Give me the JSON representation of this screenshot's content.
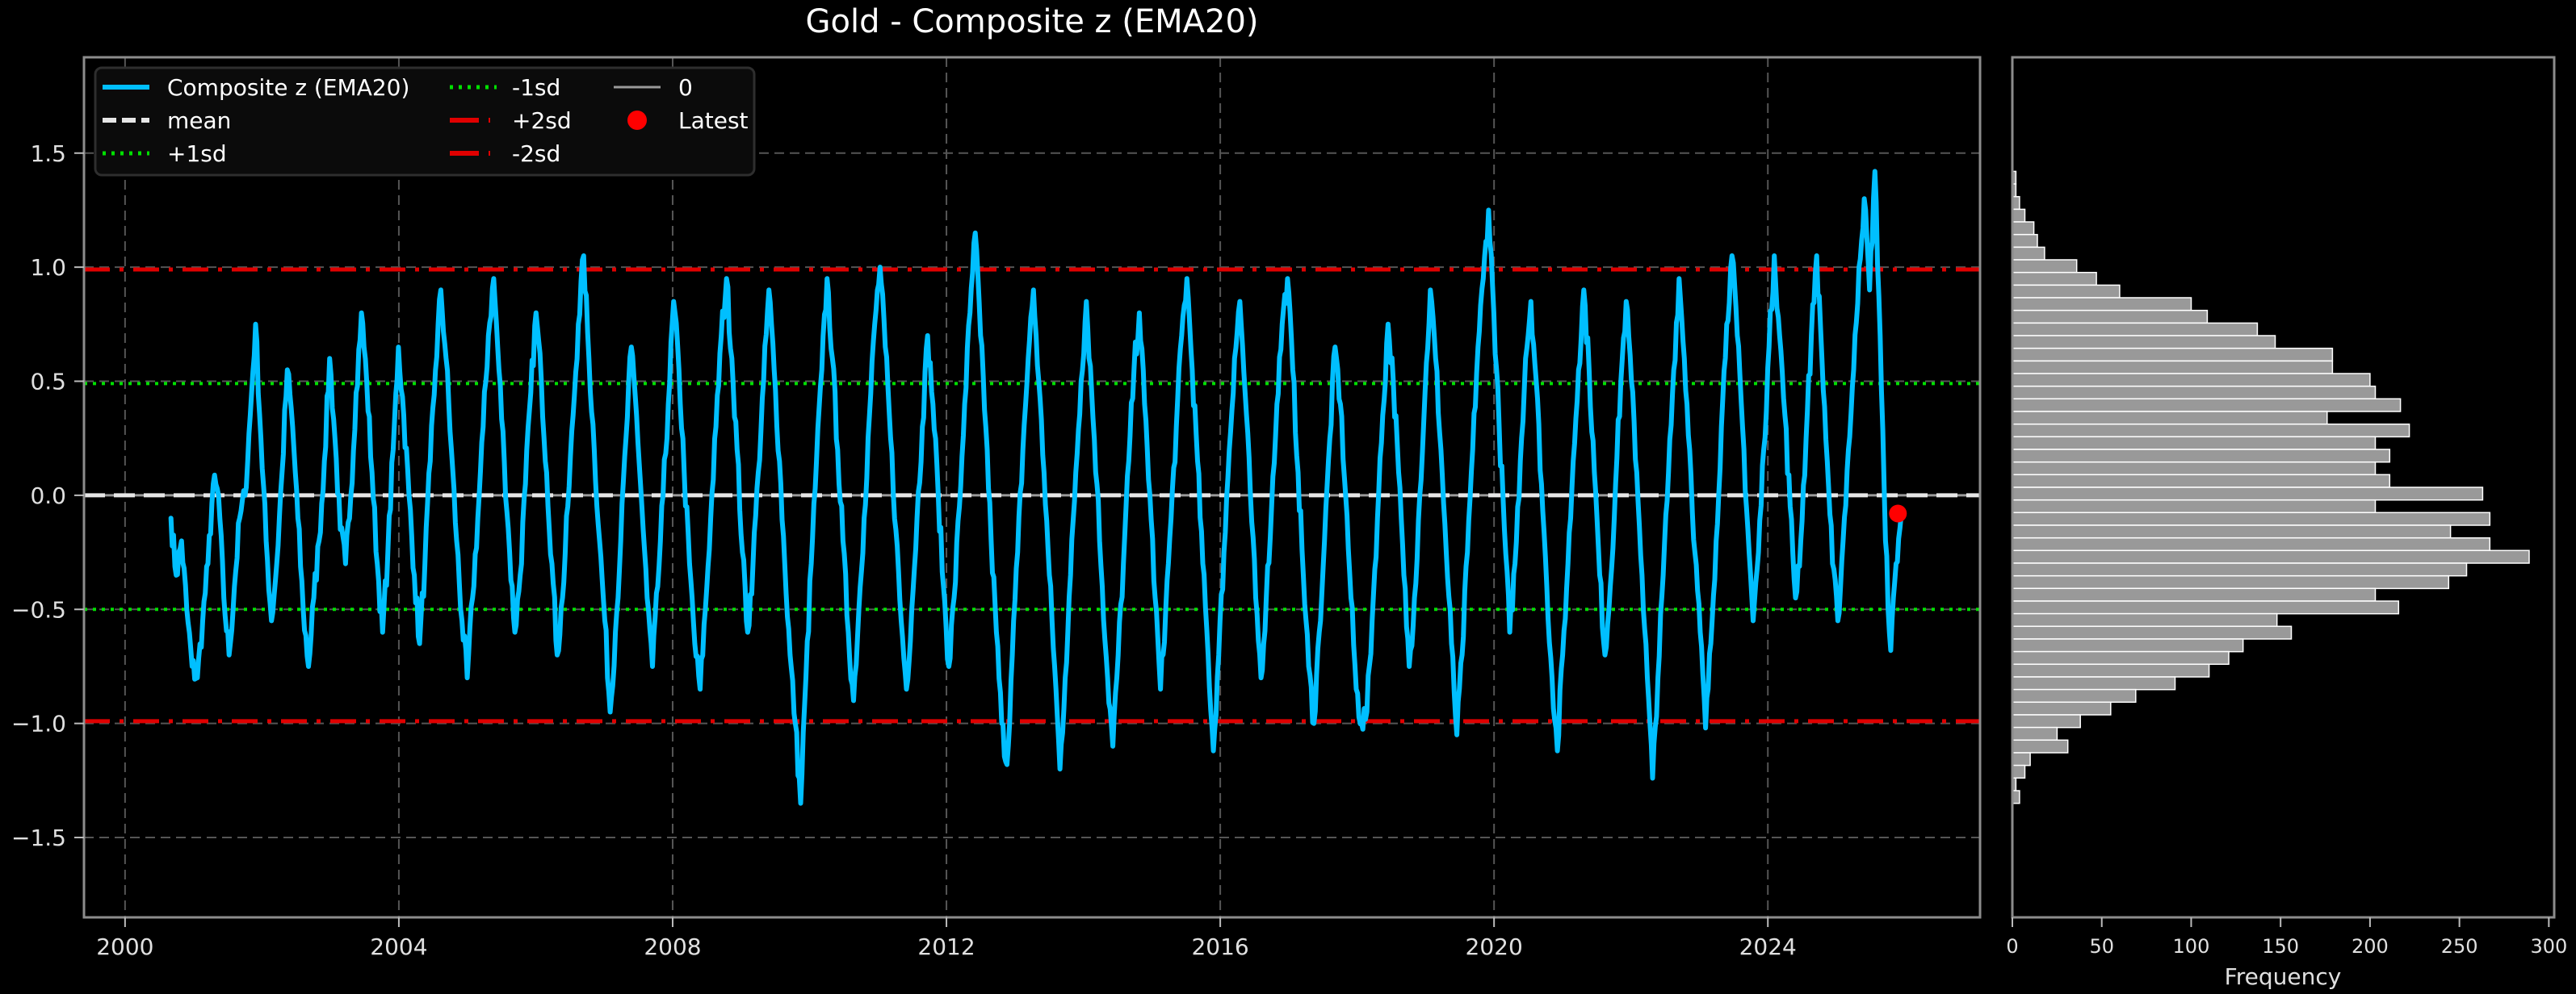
{
  "figure": {
    "title": "Gold - Composite z (EMA20)",
    "background": "#000000"
  },
  "colors": {
    "series": "#00bfff",
    "mean": "#e6e6e6",
    "one_sd": "#00e000",
    "two_sd": "#e00000",
    "zero": "#9a9a9a",
    "latest": "#ff0000",
    "grid": "#555555",
    "spine": "#8c8c8c",
    "hist_bar": "#999999",
    "hist_edge": "#ffffff",
    "legend_bg": "#0b0b0b",
    "legend_border": "#2e2e2e"
  },
  "legend": {
    "items": [
      {
        "label": "Composite z (EMA20)",
        "style": "solid",
        "color_key": "series"
      },
      {
        "label": "mean",
        "style": "dashed",
        "color_key": "mean"
      },
      {
        "label": "+1sd",
        "style": "dotted",
        "color_key": "one_sd"
      },
      {
        "label": "-1sd",
        "style": "dotted",
        "color_key": "one_sd"
      },
      {
        "label": "+2sd",
        "style": "dashdot",
        "color_key": "two_sd"
      },
      {
        "label": "-2sd",
        "style": "dashdot",
        "color_key": "two_sd"
      },
      {
        "label": "0",
        "style": "solid-thin",
        "color_key": "zero"
      },
      {
        "label": "Latest",
        "style": "marker",
        "color_key": "latest"
      }
    ]
  },
  "chart_data": [
    {
      "type": "line",
      "title": "Gold - Composite z (EMA20)",
      "xlabel": "",
      "ylabel": "",
      "xlim": [
        1999.4,
        2027.1
      ],
      "ylim": [
        -1.85,
        1.92
      ],
      "x_ticks": [
        2000,
        2004,
        2008,
        2012,
        2016,
        2020,
        2024
      ],
      "x_tick_labels": [
        "2000",
        "2004",
        "2008",
        "2012",
        "2016",
        "2020",
        "2024"
      ],
      "y_ticks": [
        -1.5,
        -1.0,
        -0.5,
        0.0,
        0.5,
        1.0,
        1.5
      ],
      "y_tick_labels": [
        "−1.5",
        "−1.0",
        "−0.5",
        "0.0",
        "0.5",
        "1.0",
        "1.5"
      ],
      "grid": true,
      "legend_position": "upper left",
      "reference_lines": {
        "mean": 0.0,
        "plus_1sd": 0.49,
        "minus_1sd": -0.5,
        "plus_2sd": 0.99,
        "minus_2sd": -0.99,
        "zero": 0.0
      },
      "latest_point": {
        "x": 2025.9,
        "y": -0.08
      },
      "series": [
        {
          "name": "Composite z (EMA20)",
          "x_start": 2000.67,
          "x_end": 2025.95,
          "values": [
            -0.1,
            -0.35,
            -0.2,
            -0.5,
            -0.75,
            -0.8,
            -0.55,
            -0.3,
            0.05,
            0.0,
            -0.45,
            -0.7,
            -0.4,
            -0.1,
            0.0,
            0.35,
            0.75,
            0.25,
            -0.2,
            -0.55,
            -0.3,
            0.1,
            0.55,
            0.3,
            -0.1,
            -0.5,
            -0.75,
            -0.45,
            -0.2,
            0.15,
            0.6,
            0.25,
            -0.15,
            -0.3,
            0.0,
            0.45,
            0.8,
            0.5,
            0.1,
            -0.3,
            -0.6,
            -0.25,
            0.2,
            0.65,
            0.35,
            0.0,
            -0.35,
            -0.65,
            -0.3,
            0.15,
            0.55,
            0.9,
            0.6,
            0.2,
            -0.2,
            -0.55,
            -0.8,
            -0.45,
            -0.1,
            0.3,
            0.7,
            0.95,
            0.55,
            0.15,
            -0.25,
            -0.6,
            -0.35,
            0.05,
            0.45,
            0.8,
            0.5,
            0.1,
            -0.3,
            -0.7,
            -0.45,
            -0.05,
            0.35,
            0.75,
            1.05,
            0.6,
            0.2,
            -0.2,
            -0.55,
            -0.95,
            -0.6,
            -0.2,
            0.25,
            0.65,
            0.35,
            -0.05,
            -0.45,
            -0.75,
            -0.4,
            0.0,
            0.4,
            0.85,
            0.55,
            0.1,
            -0.3,
            -0.65,
            -0.85,
            -0.5,
            -0.1,
            0.3,
            0.7,
            0.95,
            0.6,
            0.2,
            -0.25,
            -0.6,
            -0.3,
            0.1,
            0.5,
            0.9,
            0.55,
            0.15,
            -0.3,
            -0.7,
            -1.0,
            -1.35,
            -0.8,
            -0.3,
            0.15,
            0.55,
            0.95,
            0.6,
            0.2,
            -0.2,
            -0.6,
            -0.9,
            -0.5,
            -0.1,
            0.35,
            0.75,
            1.0,
            0.65,
            0.25,
            -0.15,
            -0.55,
            -0.85,
            -0.5,
            -0.1,
            0.3,
            0.7,
            0.4,
            0.0,
            -0.4,
            -0.75,
            -0.45,
            -0.05,
            0.4,
            0.8,
            1.15,
            0.7,
            0.3,
            -0.2,
            -0.6,
            -1.0,
            -1.18,
            -0.7,
            -0.25,
            0.2,
            0.6,
            0.9,
            0.5,
            0.1,
            -0.35,
            -0.75,
            -1.2,
            -0.8,
            -0.35,
            0.1,
            0.5,
            0.85,
            0.45,
            0.05,
            -0.4,
            -0.8,
            -1.1,
            -0.7,
            -0.3,
            0.15,
            0.55,
            0.8,
            0.4,
            0.0,
            -0.45,
            -0.85,
            -0.5,
            -0.1,
            0.3,
            0.7,
            0.95,
            0.55,
            0.15,
            -0.3,
            -0.7,
            -1.12,
            -0.7,
            -0.25,
            0.2,
            0.6,
            0.85,
            0.45,
            0.0,
            -0.45,
            -0.8,
            -0.45,
            -0.05,
            0.4,
            0.75,
            0.95,
            0.55,
            0.1,
            -0.35,
            -0.75,
            -1.0,
            -0.6,
            -0.2,
            0.25,
            0.65,
            0.4,
            0.0,
            -0.45,
            -0.85,
            -1.0,
            -0.95,
            -0.55,
            -0.1,
            0.35,
            0.75,
            0.5,
            0.1,
            -0.35,
            -0.75,
            -0.45,
            0.0,
            0.45,
            0.9,
            0.6,
            0.2,
            -0.25,
            -0.65,
            -1.05,
            -0.7,
            -0.25,
            0.2,
            0.65,
            0.95,
            1.25,
            0.8,
            0.3,
            -0.15,
            -0.6,
            -0.3,
            0.15,
            0.6,
            0.85,
            0.5,
            0.05,
            -0.4,
            -0.8,
            -1.12,
            -0.7,
            -0.3,
            0.15,
            0.55,
            0.9,
            0.55,
            0.1,
            -0.35,
            -0.7,
            -0.4,
            0.05,
            0.5,
            0.85,
            0.5,
            0.1,
            -0.35,
            -0.8,
            -1.24,
            -0.8,
            -0.35,
            0.1,
            0.55,
            0.95,
            0.6,
            0.2,
            -0.25,
            -0.6,
            -1.02,
            -0.65,
            -0.2,
            0.3,
            0.75,
            1.05,
            0.7,
            0.3,
            -0.15,
            -0.55,
            -0.25,
            0.2,
            0.65,
            1.05,
            0.7,
            0.35,
            -0.05,
            -0.45,
            -0.2,
            0.25,
            0.7,
            1.05,
            0.6,
            0.15,
            -0.3,
            -0.55,
            -0.2,
            0.2,
            0.55,
            1.0,
            1.3,
            0.9,
            1.42,
            0.7,
            -0.2,
            -0.68,
            -0.3,
            -0.08
          ]
        }
      ]
    },
    {
      "type": "bar",
      "orientation": "horizontal",
      "title": "",
      "xlabel": "Frequency",
      "ylabel": "",
      "xlim": [
        0,
        303
      ],
      "x_ticks": [
        0,
        50,
        100,
        150,
        200,
        250,
        300
      ],
      "x_tick_labels": [
        "0",
        "50",
        "100",
        "150",
        "200",
        "250",
        "300"
      ],
      "bin_range": [
        -1.35,
        1.42
      ],
      "bins": 50,
      "counts_top_to_bottom": [
        2,
        2,
        4,
        7,
        12,
        14,
        18,
        36,
        47,
        60,
        100,
        109,
        137,
        147,
        179,
        179,
        200,
        203,
        217,
        176,
        222,
        203,
        211,
        203,
        211,
        263,
        203,
        267,
        245,
        267,
        289,
        254,
        244,
        203,
        216,
        148,
        156,
        129,
        121,
        110,
        91,
        69,
        55,
        38,
        25,
        31,
        10,
        7,
        2,
        4
      ]
    }
  ]
}
